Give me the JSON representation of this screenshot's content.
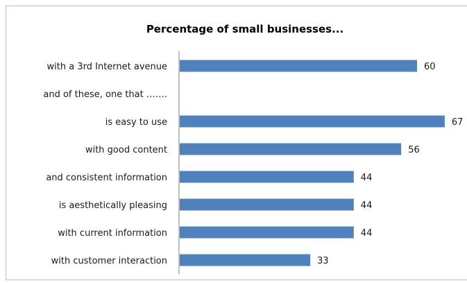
{
  "chart_data": {
    "type": "bar",
    "orientation": "horizontal",
    "title": "Percentage of small businesses...",
    "categories": [
      "with a 3rd Internet avenue",
      "and of these, one that …….",
      "is easy to use",
      "with good content",
      "and consistent information",
      "is aesthetically pleasing",
      "with current information",
      "with customer interaction"
    ],
    "values": [
      60,
      null,
      67,
      56,
      44,
      44,
      44,
      33
    ],
    "value_labels": [
      "60",
      "",
      "67",
      "56",
      "44",
      "44",
      "44",
      "33"
    ],
    "xlim": [
      0,
      67
    ],
    "bar_color": "#4f81bd",
    "grid": false,
    "legend": "none"
  }
}
